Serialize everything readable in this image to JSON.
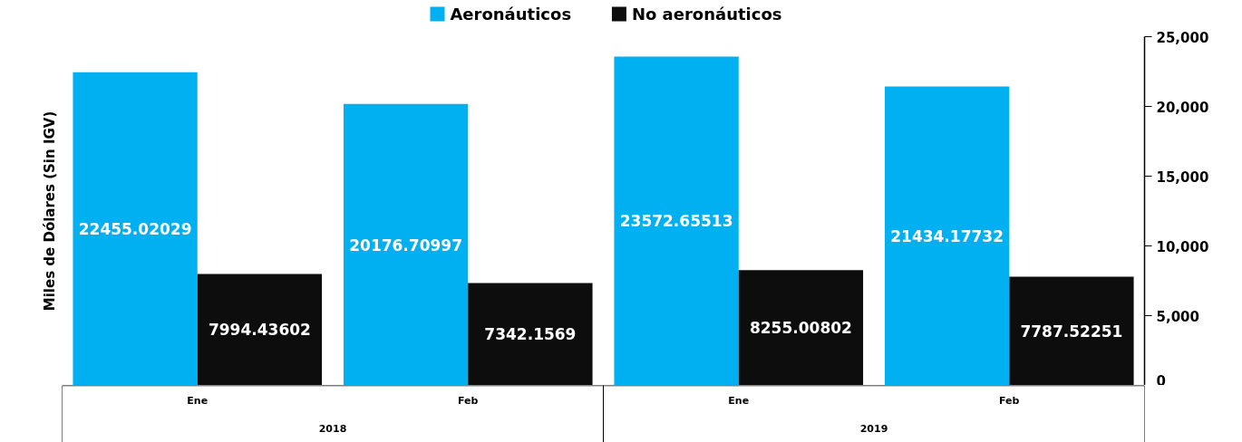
{
  "chart_data": {
    "type": "bar",
    "ylabel": "Miles de Dólares (Sin IGV)",
    "categories": [
      "Ene",
      "Feb",
      "Ene",
      "Feb"
    ],
    "annotations": [
      "2018",
      "2019"
    ],
    "series": [
      {
        "name": "Aeronáuticos",
        "color": "#00b0f0",
        "values": [
          22455.02029,
          20176.70997,
          23572.65513,
          21434.17732
        ]
      },
      {
        "name": "No aeronáuticos",
        "color": "#0d0d0d",
        "values": [
          7994.43602,
          7342.1569,
          8255.00802,
          7787.52251
        ]
      }
    ],
    "ylim": [
      0,
      25000
    ],
    "yticks": [
      0,
      {
        "value": 5000,
        "label": "5,000"
      },
      {
        "value": 10000,
        "label": "10,000"
      },
      {
        "value": 15000,
        "label": "15,000"
      },
      {
        "value": 20000,
        "label": "20,000"
      },
      {
        "value": 25000,
        "label": "25,000"
      }
    ],
    "data_labels": true,
    "grid": false,
    "legend": "top"
  }
}
